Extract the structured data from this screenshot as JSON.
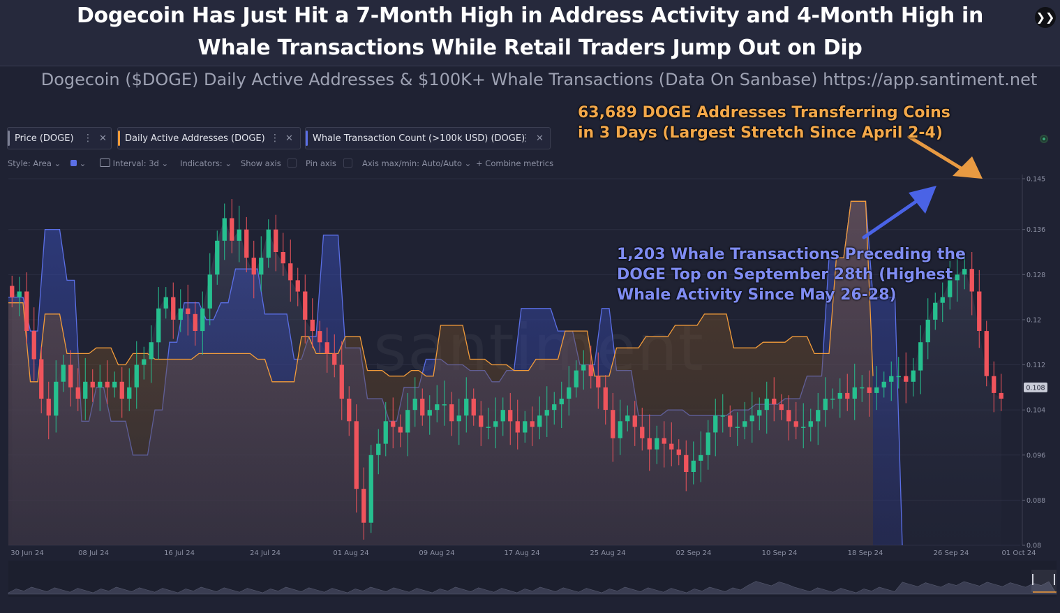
{
  "header": {
    "title_line1": "Dogecoin Has Just Hit a 7-Month High in Address Activity and 4-Month High in",
    "title_line2": "Whale Transactions While Retail Traders Jump Out on Dip",
    "subtitle": "Dogecoin ($DOGE) Daily Active Addresses & $100K+ Whale Transactions (Data On Sanbase) https://app.santiment.net",
    "forward_glyph": "❯❯"
  },
  "metrics": [
    {
      "label": "Price (DOGE)",
      "color": "#7c8094"
    },
    {
      "label": "Daily Active Addresses (DOGE)",
      "color": "#f39c3a"
    },
    {
      "label": "Whale Transaction Count (>100k USD) (DOGE)",
      "color": "#5b6fe6"
    }
  ],
  "toolbar": {
    "style": "Style: Area",
    "interval": "Interval: 3d",
    "indicators": "Indicators:",
    "show_axis": "Show axis",
    "pin_axis": "Pin axis",
    "axis_minmax": "Axis max/min: Auto/Auto",
    "combine": "Combine metrics"
  },
  "annotations": {
    "orange_line1": "63,689 DOGE Addresses Transferring Coins",
    "orange_line2": "in 3 Days (Largest Stretch Since April 2-4)",
    "blue_line1": "1,203 Whale Transactions Preceding the",
    "blue_line2": "DOGE Top on September 28th (Highest",
    "blue_line3": "Whale Activity Since May 26-28)"
  },
  "watermark": "santiment",
  "colors": {
    "up": "#26c08f",
    "down": "#f0545c",
    "orange": "#f39c3a",
    "blue": "#5b6fe6",
    "background": "#1f2233"
  },
  "chart_data": {
    "type": "candlestick",
    "x_labels": [
      "30 Jun 24",
      "08 Jul 24",
      "16 Jul 24",
      "24 Jul 24",
      "01 Aug 24",
      "09 Aug 24",
      "17 Aug 24",
      "25 Aug 24",
      "02 Sep 24",
      "10 Sep 24",
      "18 Sep 24",
      "26 Sep 24",
      "01 Oct 24"
    ],
    "y_ticks": [
      "0.145",
      "0.136",
      "0.128",
      "0.12",
      "0.112",
      "0.104",
      "0.096",
      "0.088",
      "0.08"
    ],
    "ylim": [
      0.08,
      0.145
    ],
    "current_price_label": "0.108",
    "price_close": [
      0.124,
      0.125,
      0.118,
      0.113,
      0.106,
      0.103,
      0.109,
      0.112,
      0.108,
      0.106,
      0.109,
      0.108,
      0.109,
      0.108,
      0.109,
      0.106,
      0.108,
      0.112,
      0.113,
      0.116,
      0.122,
      0.124,
      0.12,
      0.122,
      0.121,
      0.118,
      0.122,
      0.128,
      0.134,
      0.138,
      0.134,
      0.136,
      0.131,
      0.128,
      0.131,
      0.136,
      0.132,
      0.13,
      0.127,
      0.125,
      0.12,
      0.118,
      0.116,
      0.114,
      0.112,
      0.106,
      0.102,
      0.09,
      0.084,
      0.096,
      0.098,
      0.102,
      0.101,
      0.1,
      0.104,
      0.106,
      0.103,
      0.104,
      0.105,
      0.105,
      0.102,
      0.103,
      0.106,
      0.103,
      0.101,
      0.101,
      0.102,
      0.104,
      0.102,
      0.1,
      0.102,
      0.101,
      0.103,
      0.104,
      0.105,
      0.106,
      0.108,
      0.111,
      0.112,
      0.11,
      0.108,
      0.104,
      0.099,
      0.102,
      0.103,
      0.101,
      0.099,
      0.097,
      0.099,
      0.098,
      0.097,
      0.096,
      0.093,
      0.095,
      0.096,
      0.1,
      0.103,
      0.103,
      0.101,
      0.101,
      0.102,
      0.103,
      0.104,
      0.106,
      0.105,
      0.104,
      0.102,
      0.101,
      0.101,
      0.102,
      0.104,
      0.106,
      0.106,
      0.107,
      0.106,
      0.108,
      0.108,
      0.107,
      0.108,
      0.109,
      0.11,
      0.11,
      0.109,
      0.111,
      0.116,
      0.12,
      0.123,
      0.124,
      0.127,
      0.128,
      0.129,
      0.125,
      0.118,
      0.11,
      0.107,
      0.106
    ],
    "whale_transactions": [
      [
        0,
        0.124
      ],
      [
        2,
        0.124
      ],
      [
        3,
        0.118
      ],
      [
        4,
        0.118
      ],
      [
        5,
        0.136
      ],
      [
        7,
        0.136
      ],
      [
        8,
        0.127
      ],
      [
        9,
        0.127
      ],
      [
        10,
        0.102
      ],
      [
        11,
        0.102
      ],
      [
        12,
        0.108
      ],
      [
        13,
        0.108
      ],
      [
        14,
        0.102
      ],
      [
        16,
        0.102
      ],
      [
        17,
        0.096
      ],
      [
        19,
        0.096
      ],
      [
        20,
        0.104
      ],
      [
        21,
        0.104
      ],
      [
        22,
        0.116
      ],
      [
        23,
        0.116
      ],
      [
        24,
        0.123
      ],
      [
        26,
        0.123
      ],
      [
        27,
        0.12
      ],
      [
        28,
        0.12
      ],
      [
        29,
        0.123
      ],
      [
        30,
        0.123
      ],
      [
        31,
        0.129
      ],
      [
        34,
        0.129
      ],
      [
        35,
        0.121
      ],
      [
        38,
        0.121
      ],
      [
        39,
        0.113
      ],
      [
        40,
        0.113
      ],
      [
        41,
        0.117
      ],
      [
        42,
        0.117
      ],
      [
        43,
        0.135
      ],
      [
        45,
        0.135
      ],
      [
        46,
        0.115
      ],
      [
        48,
        0.115
      ],
      [
        49,
        0.106
      ],
      [
        51,
        0.106
      ],
      [
        52,
        0.102
      ],
      [
        53,
        0.102
      ],
      [
        54,
        0.108
      ],
      [
        56,
        0.108
      ],
      [
        57,
        0.113
      ],
      [
        59,
        0.113
      ],
      [
        60,
        0.112
      ],
      [
        62,
        0.112
      ],
      [
        63,
        0.111
      ],
      [
        65,
        0.111
      ],
      [
        66,
        0.109
      ],
      [
        67,
        0.109
      ],
      [
        68,
        0.111
      ],
      [
        69,
        0.111
      ],
      [
        70,
        0.122
      ],
      [
        74,
        0.122
      ],
      [
        75,
        0.118
      ],
      [
        77,
        0.118
      ],
      [
        78,
        0.112
      ],
      [
        80,
        0.112
      ],
      [
        81,
        0.122
      ],
      [
        82,
        0.122
      ],
      [
        83,
        0.111
      ],
      [
        85,
        0.111
      ],
      [
        86,
        0.103
      ],
      [
        89,
        0.103
      ],
      [
        90,
        0.104
      ],
      [
        92,
        0.104
      ],
      [
        93,
        0.103
      ],
      [
        96,
        0.103
      ],
      [
        97,
        0.103
      ],
      [
        98,
        0.103
      ],
      [
        99,
        0.104
      ],
      [
        101,
        0.104
      ],
      [
        102,
        0.105
      ],
      [
        105,
        0.105
      ],
      [
        106,
        0.106
      ],
      [
        108,
        0.106
      ],
      [
        109,
        0.11
      ],
      [
        111,
        0.11
      ],
      [
        112,
        0.131
      ],
      [
        114,
        0.131
      ],
      [
        115,
        0.141
      ],
      [
        117,
        0.141
      ],
      [
        118,
        0.124
      ],
      [
        121,
        0.124
      ],
      [
        122,
        0.08
      ]
    ],
    "daily_active_addresses": [
      [
        0,
        0.123
      ],
      [
        2,
        0.123
      ],
      [
        3,
        0.109
      ],
      [
        4,
        0.109
      ],
      [
        5,
        0.121
      ],
      [
        7,
        0.121
      ],
      [
        8,
        0.114
      ],
      [
        11,
        0.114
      ],
      [
        12,
        0.115
      ],
      [
        14,
        0.115
      ],
      [
        15,
        0.112
      ],
      [
        16,
        0.112
      ],
      [
        17,
        0.114
      ],
      [
        19,
        0.114
      ],
      [
        20,
        0.113
      ],
      [
        22,
        0.113
      ],
      [
        23,
        0.113
      ],
      [
        25,
        0.113
      ],
      [
        26,
        0.114
      ],
      [
        30,
        0.114
      ],
      [
        31,
        0.114
      ],
      [
        33,
        0.114
      ],
      [
        34,
        0.113
      ],
      [
        35,
        0.113
      ],
      [
        36,
        0.109
      ],
      [
        39,
        0.109
      ],
      [
        40,
        0.117
      ],
      [
        41,
        0.117
      ],
      [
        42,
        0.114
      ],
      [
        45,
        0.114
      ],
      [
        46,
        0.117
      ],
      [
        48,
        0.117
      ],
      [
        49,
        0.111
      ],
      [
        51,
        0.111
      ],
      [
        52,
        0.11
      ],
      [
        54,
        0.11
      ],
      [
        55,
        0.111
      ],
      [
        56,
        0.111
      ],
      [
        57,
        0.11
      ],
      [
        58,
        0.11
      ],
      [
        59,
        0.119
      ],
      [
        62,
        0.119
      ],
      [
        63,
        0.113
      ],
      [
        65,
        0.113
      ],
      [
        66,
        0.112
      ],
      [
        68,
        0.112
      ],
      [
        69,
        0.111
      ],
      [
        71,
        0.111
      ],
      [
        72,
        0.113
      ],
      [
        75,
        0.113
      ],
      [
        76,
        0.118
      ],
      [
        79,
        0.118
      ],
      [
        80,
        0.11
      ],
      [
        82,
        0.11
      ],
      [
        83,
        0.115
      ],
      [
        86,
        0.115
      ],
      [
        87,
        0.117
      ],
      [
        90,
        0.117
      ],
      [
        91,
        0.119
      ],
      [
        94,
        0.119
      ],
      [
        95,
        0.121
      ],
      [
        98,
        0.121
      ],
      [
        99,
        0.115
      ],
      [
        102,
        0.115
      ],
      [
        103,
        0.116
      ],
      [
        106,
        0.116
      ],
      [
        107,
        0.117
      ],
      [
        109,
        0.117
      ],
      [
        110,
        0.114
      ],
      [
        112,
        0.114
      ],
      [
        113,
        0.131
      ],
      [
        114,
        0.131
      ],
      [
        115,
        0.141
      ],
      [
        117,
        0.141
      ],
      [
        118,
        0.11
      ]
    ]
  }
}
